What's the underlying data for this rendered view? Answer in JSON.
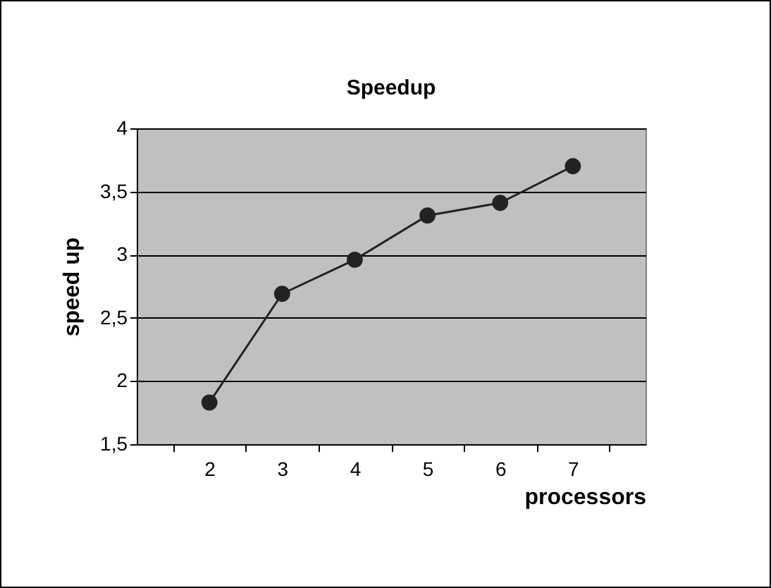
{
  "chart_data": {
    "type": "line",
    "title": "Speedup",
    "xlabel": "processors",
    "ylabel": "speed up",
    "categories": [
      "2",
      "3",
      "4",
      "5",
      "6",
      "7"
    ],
    "series": [
      {
        "color": "#222222",
        "values": [
          1.83,
          2.69,
          2.96,
          3.31,
          3.41,
          3.7
        ]
      }
    ],
    "ylim": [
      1.5,
      4
    ],
    "yticks": [
      {
        "value": 1.5,
        "label": "1,5"
      },
      2,
      {
        "value": 2.5,
        "label": "2,5"
      },
      3,
      {
        "value": 3.5,
        "label": "3,5"
      },
      4
    ],
    "grid": "y",
    "marker": "circle",
    "line_style": "solid",
    "legend": false
  }
}
